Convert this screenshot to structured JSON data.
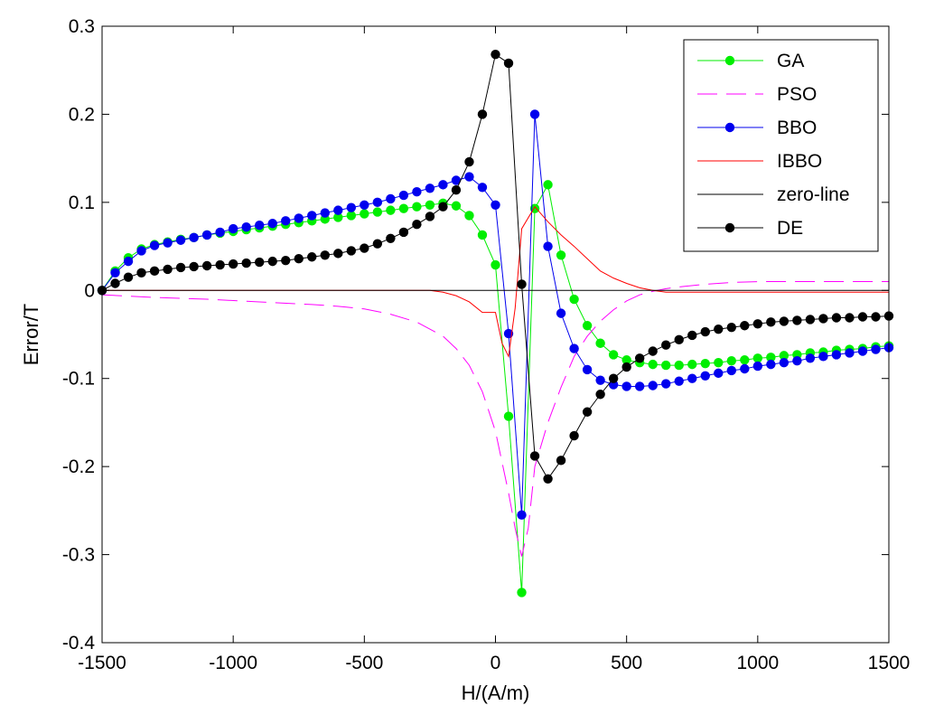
{
  "chart_data": {
    "type": "line",
    "title": "",
    "xlabel": "H/(A/m)",
    "ylabel": "Error/T",
    "xlim": [
      -1500,
      1500
    ],
    "ylim": [
      -0.4,
      0.3
    ],
    "xticks": [
      -1500,
      -1000,
      -500,
      0,
      500,
      1000,
      1500
    ],
    "xtick_labels": [
      "-1500",
      "-1000",
      "-500",
      "0",
      "500",
      "1000",
      "1500"
    ],
    "yticks": [
      -0.4,
      -0.3,
      -0.2,
      -0.1,
      0,
      0.1,
      0.2,
      0.3
    ],
    "ytick_labels": [
      "-0.4",
      "-0.3",
      "-0.2",
      "-0.1",
      "0",
      "0.1",
      "0.2",
      "0.3"
    ],
    "grid": false,
    "legend_position": "top-right",
    "series": [
      {
        "name": "GA",
        "color": "#00ee00",
        "style": "solid-markers",
        "x": [
          -1500,
          -1450,
          -1400,
          -1350,
          -1300,
          -1250,
          -1200,
          -1150,
          -1100,
          -1050,
          -1000,
          -950,
          -900,
          -850,
          -800,
          -750,
          -700,
          -650,
          -600,
          -550,
          -500,
          -450,
          -400,
          -350,
          -300,
          -250,
          -200,
          -150,
          -100,
          -50,
          0,
          50,
          100,
          150,
          200,
          250,
          300,
          350,
          400,
          450,
          500,
          550,
          600,
          650,
          700,
          750,
          800,
          850,
          900,
          950,
          1000,
          1050,
          1100,
          1150,
          1200,
          1250,
          1300,
          1350,
          1400,
          1450,
          1500
        ],
        "y": [
          0,
          0.022,
          0.037,
          0.047,
          0.052,
          0.055,
          0.058,
          0.06,
          0.063,
          0.065,
          0.067,
          0.069,
          0.071,
          0.073,
          0.075,
          0.077,
          0.079,
          0.081,
          0.083,
          0.085,
          0.087,
          0.089,
          0.091,
          0.093,
          0.095,
          0.097,
          0.099,
          0.096,
          0.085,
          0.063,
          0.029,
          -0.143,
          -0.343,
          0.093,
          0.12,
          0.04,
          -0.01,
          -0.04,
          -0.06,
          -0.073,
          -0.079,
          -0.082,
          -0.084,
          -0.085,
          -0.085,
          -0.084,
          -0.083,
          -0.082,
          -0.08,
          -0.079,
          -0.077,
          -0.076,
          -0.074,
          -0.073,
          -0.071,
          -0.07,
          -0.068,
          -0.067,
          -0.066,
          -0.064,
          -0.063
        ]
      },
      {
        "name": "PSO",
        "color": "#ff00ff",
        "style": "dashed",
        "x": [
          -1500,
          -1300,
          -1100,
          -900,
          -700,
          -600,
          -500,
          -400,
          -300,
          -200,
          -150,
          -100,
          -50,
          0,
          50,
          75,
          100,
          125,
          150,
          200,
          250,
          300,
          350,
          400,
          450,
          500,
          550,
          600,
          650,
          700,
          800,
          900,
          1000,
          1200,
          1500
        ],
        "y": [
          -0.005,
          -0.008,
          -0.01,
          -0.013,
          -0.016,
          -0.018,
          -0.021,
          -0.027,
          -0.036,
          -0.052,
          -0.066,
          -0.085,
          -0.115,
          -0.16,
          -0.23,
          -0.27,
          -0.302,
          -0.27,
          -0.2,
          -0.15,
          -0.11,
          -0.075,
          -0.052,
          -0.035,
          -0.022,
          -0.012,
          -0.005,
          -0.001,
          0.002,
          0.004,
          0.007,
          0.009,
          0.01,
          0.01,
          0.01
        ]
      },
      {
        "name": "BBO",
        "color": "#0000ee",
        "style": "solid-markers",
        "x": [
          -1500,
          -1450,
          -1400,
          -1350,
          -1300,
          -1250,
          -1200,
          -1150,
          -1100,
          -1050,
          -1000,
          -950,
          -900,
          -850,
          -800,
          -750,
          -700,
          -650,
          -600,
          -550,
          -500,
          -450,
          -400,
          -350,
          -300,
          -250,
          -200,
          -150,
          -100,
          -50,
          0,
          50,
          100,
          150,
          200,
          250,
          300,
          350,
          400,
          450,
          500,
          550,
          600,
          650,
          700,
          750,
          800,
          850,
          900,
          950,
          1000,
          1050,
          1100,
          1150,
          1200,
          1250,
          1300,
          1350,
          1400,
          1450,
          1500
        ],
        "y": [
          0,
          0.02,
          0.033,
          0.045,
          0.051,
          0.054,
          0.057,
          0.06,
          0.063,
          0.066,
          0.07,
          0.072,
          0.074,
          0.076,
          0.079,
          0.082,
          0.085,
          0.088,
          0.091,
          0.094,
          0.097,
          0.1,
          0.104,
          0.108,
          0.112,
          0.116,
          0.12,
          0.125,
          0.129,
          0.117,
          0.097,
          -0.049,
          -0.255,
          0.2,
          0.05,
          -0.026,
          -0.066,
          -0.09,
          -0.102,
          -0.107,
          -0.109,
          -0.109,
          -0.108,
          -0.106,
          -0.103,
          -0.1,
          -0.097,
          -0.094,
          -0.091,
          -0.089,
          -0.086,
          -0.084,
          -0.082,
          -0.08,
          -0.077,
          -0.075,
          -0.073,
          -0.071,
          -0.069,
          -0.067,
          -0.065
        ]
      },
      {
        "name": "IBBO",
        "color": "#ff0000",
        "style": "solid-thin",
        "x": [
          -1500,
          -1000,
          -500,
          -300,
          -250,
          -200,
          -150,
          -100,
          -50,
          0,
          25,
          50,
          75,
          100,
          150,
          200,
          250,
          300,
          350,
          400,
          450,
          500,
          550,
          600,
          650,
          700,
          800,
          1000,
          1500
        ],
        "y": [
          0,
          0,
          0,
          0,
          0,
          -0.002,
          -0.006,
          -0.013,
          -0.025,
          -0.025,
          -0.06,
          -0.075,
          -0.02,
          0.07,
          0.095,
          0.078,
          0.063,
          0.05,
          0.036,
          0.022,
          0.014,
          0.008,
          0.003,
          0,
          -0.002,
          -0.002,
          -0.002,
          -0.002,
          -0.002
        ]
      },
      {
        "name": "zero-line",
        "color": "#000000",
        "style": "solid-thin",
        "x": [
          -1500,
          1500
        ],
        "y": [
          0,
          0
        ]
      },
      {
        "name": "DE",
        "color": "#000000",
        "style": "solid-markers",
        "x": [
          -1500,
          -1450,
          -1400,
          -1350,
          -1300,
          -1250,
          -1200,
          -1150,
          -1100,
          -1050,
          -1000,
          -950,
          -900,
          -850,
          -800,
          -750,
          -700,
          -650,
          -600,
          -550,
          -500,
          -450,
          -400,
          -350,
          -300,
          -250,
          -200,
          -150,
          -100,
          -50,
          0,
          50,
          100,
          150,
          200,
          250,
          300,
          350,
          400,
          450,
          500,
          550,
          600,
          650,
          700,
          750,
          800,
          850,
          900,
          950,
          1000,
          1050,
          1100,
          1150,
          1200,
          1250,
          1300,
          1350,
          1400,
          1450,
          1500
        ],
        "y": [
          0,
          0.008,
          0.015,
          0.02,
          0.022,
          0.024,
          0.026,
          0.027,
          0.028,
          0.029,
          0.03,
          0.031,
          0.032,
          0.033,
          0.034,
          0.036,
          0.038,
          0.04,
          0.042,
          0.045,
          0.048,
          0.053,
          0.059,
          0.066,
          0.075,
          0.084,
          0.095,
          0.114,
          0.146,
          0.2,
          0.268,
          0.258,
          0.007,
          -0.188,
          -0.214,
          -0.193,
          -0.165,
          -0.138,
          -0.118,
          -0.1,
          -0.087,
          -0.077,
          -0.069,
          -0.062,
          -0.056,
          -0.051,
          -0.047,
          -0.044,
          -0.042,
          -0.04,
          -0.038,
          -0.036,
          -0.035,
          -0.034,
          -0.033,
          -0.032,
          -0.031,
          -0.031,
          -0.03,
          -0.03,
          -0.029
        ]
      }
    ]
  }
}
